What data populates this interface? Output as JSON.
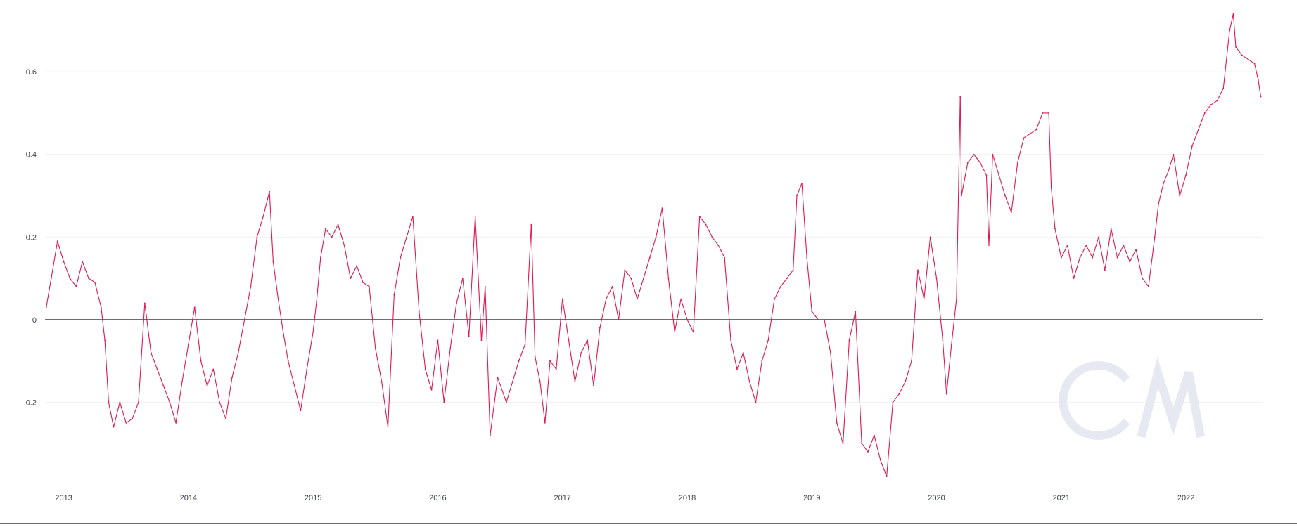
{
  "colors": {
    "series": "#e0184e",
    "grid": "#eef0f4",
    "zero_line": "#3a3d44",
    "watermark": "#e6e9f2",
    "text": "#3b3f4a"
  },
  "watermark_icon": "coinmetrics-logo",
  "chart_data": {
    "type": "line",
    "title": "",
    "xlabel": "",
    "ylabel": "",
    "grid": true,
    "legend": "none",
    "ylim": [
      -0.4,
      0.75
    ],
    "y_ticks": [
      {
        "value": -0.2,
        "label": "-0.2"
      },
      {
        "value": 0,
        "label": "0"
      },
      {
        "value": 0.2,
        "label": "0.2"
      },
      {
        "value": 0.4,
        "label": "0.4"
      },
      {
        "value": 0.6,
        "label": "0.6"
      }
    ],
    "x_range": [
      2012.85,
      2022.62
    ],
    "x_ticks": [
      {
        "value": 2013,
        "label": "2013"
      },
      {
        "value": 2014,
        "label": "2014"
      },
      {
        "value": 2015,
        "label": "2015"
      },
      {
        "value": 2016,
        "label": "2016"
      },
      {
        "value": 2017,
        "label": "2017"
      },
      {
        "value": 2018,
        "label": "2018"
      },
      {
        "value": 2019,
        "label": "2019"
      },
      {
        "value": 2020,
        "label": "2020"
      },
      {
        "value": 2021,
        "label": "2021"
      },
      {
        "value": 2022,
        "label": "2022"
      }
    ],
    "series": [
      {
        "values": [
          [
            2012.86,
            0.03
          ],
          [
            2012.9,
            0.1
          ],
          [
            2012.95,
            0.19
          ],
          [
            2013.0,
            0.14
          ],
          [
            2013.05,
            0.1
          ],
          [
            2013.1,
            0.08
          ],
          [
            2013.15,
            0.14
          ],
          [
            2013.2,
            0.1
          ],
          [
            2013.25,
            0.09
          ],
          [
            2013.3,
            0.03
          ],
          [
            2013.33,
            -0.05
          ],
          [
            2013.36,
            -0.2
          ],
          [
            2013.4,
            -0.26
          ],
          [
            2013.45,
            -0.2
          ],
          [
            2013.5,
            -0.25
          ],
          [
            2013.55,
            -0.24
          ],
          [
            2013.6,
            -0.2
          ],
          [
            2013.65,
            0.04
          ],
          [
            2013.7,
            -0.08
          ],
          [
            2013.75,
            -0.12
          ],
          [
            2013.8,
            -0.16
          ],
          [
            2013.85,
            -0.2
          ],
          [
            2013.9,
            -0.25
          ],
          [
            2013.95,
            -0.15
          ],
          [
            2014.0,
            -0.06
          ],
          [
            2014.05,
            0.03
          ],
          [
            2014.1,
            -0.1
          ],
          [
            2014.15,
            -0.16
          ],
          [
            2014.2,
            -0.12
          ],
          [
            2014.25,
            -0.2
          ],
          [
            2014.3,
            -0.24
          ],
          [
            2014.35,
            -0.14
          ],
          [
            2014.4,
            -0.08
          ],
          [
            2014.45,
            0.0
          ],
          [
            2014.5,
            0.08
          ],
          [
            2014.55,
            0.2
          ],
          [
            2014.6,
            0.25
          ],
          [
            2014.65,
            0.31
          ],
          [
            2014.68,
            0.14
          ],
          [
            2014.72,
            0.05
          ],
          [
            2014.76,
            -0.03
          ],
          [
            2014.8,
            -0.1
          ],
          [
            2014.85,
            -0.16
          ],
          [
            2014.9,
            -0.22
          ],
          [
            2014.95,
            -0.12
          ],
          [
            2015.0,
            -0.03
          ],
          [
            2015.03,
            0.05
          ],
          [
            2015.06,
            0.15
          ],
          [
            2015.1,
            0.22
          ],
          [
            2015.15,
            0.2
          ],
          [
            2015.2,
            0.23
          ],
          [
            2015.25,
            0.18
          ],
          [
            2015.3,
            0.1
          ],
          [
            2015.35,
            0.13
          ],
          [
            2015.4,
            0.09
          ],
          [
            2015.45,
            0.08
          ],
          [
            2015.5,
            -0.07
          ],
          [
            2015.55,
            -0.15
          ],
          [
            2015.6,
            -0.26
          ],
          [
            2015.65,
            0.06
          ],
          [
            2015.7,
            0.15
          ],
          [
            2015.75,
            0.2
          ],
          [
            2015.8,
            0.25
          ],
          [
            2015.85,
            0.02
          ],
          [
            2015.9,
            -0.12
          ],
          [
            2015.95,
            -0.17
          ],
          [
            2016.0,
            -0.05
          ],
          [
            2016.05,
            -0.2
          ],
          [
            2016.1,
            -0.07
          ],
          [
            2016.15,
            0.04
          ],
          [
            2016.2,
            0.1
          ],
          [
            2016.25,
            -0.04
          ],
          [
            2016.3,
            0.25
          ],
          [
            2016.35,
            -0.05
          ],
          [
            2016.38,
            0.08
          ],
          [
            2016.42,
            -0.28
          ],
          [
            2016.48,
            -0.14
          ],
          [
            2016.55,
            -0.2
          ],
          [
            2016.6,
            -0.15
          ],
          [
            2016.65,
            -0.1
          ],
          [
            2016.7,
            -0.06
          ],
          [
            2016.75,
            0.23
          ],
          [
            2016.78,
            -0.09
          ],
          [
            2016.82,
            -0.15
          ],
          [
            2016.86,
            -0.25
          ],
          [
            2016.9,
            -0.1
          ],
          [
            2016.95,
            -0.12
          ],
          [
            2017.0,
            0.05
          ],
          [
            2017.05,
            -0.05
          ],
          [
            2017.1,
            -0.15
          ],
          [
            2017.15,
            -0.08
          ],
          [
            2017.2,
            -0.05
          ],
          [
            2017.25,
            -0.16
          ],
          [
            2017.3,
            -0.02
          ],
          [
            2017.35,
            0.05
          ],
          [
            2017.4,
            0.08
          ],
          [
            2017.45,
            0.0
          ],
          [
            2017.5,
            0.12
          ],
          [
            2017.55,
            0.1
          ],
          [
            2017.6,
            0.05
          ],
          [
            2017.65,
            0.1
          ],
          [
            2017.7,
            0.15
          ],
          [
            2017.75,
            0.2
          ],
          [
            2017.8,
            0.27
          ],
          [
            2017.85,
            0.1
          ],
          [
            2017.9,
            -0.03
          ],
          [
            2017.95,
            0.05
          ],
          [
            2018.0,
            0.0
          ],
          [
            2018.05,
            -0.03
          ],
          [
            2018.1,
            0.25
          ],
          [
            2018.15,
            0.23
          ],
          [
            2018.2,
            0.2
          ],
          [
            2018.25,
            0.18
          ],
          [
            2018.3,
            0.15
          ],
          [
            2018.35,
            -0.05
          ],
          [
            2018.4,
            -0.12
          ],
          [
            2018.45,
            -0.08
          ],
          [
            2018.5,
            -0.15
          ],
          [
            2018.55,
            -0.2
          ],
          [
            2018.6,
            -0.1
          ],
          [
            2018.65,
            -0.05
          ],
          [
            2018.7,
            0.05
          ],
          [
            2018.75,
            0.08
          ],
          [
            2018.8,
            0.1
          ],
          [
            2018.85,
            0.12
          ],
          [
            2018.88,
            0.3
          ],
          [
            2018.92,
            0.33
          ],
          [
            2018.96,
            0.15
          ],
          [
            2019.0,
            0.02
          ],
          [
            2019.05,
            0.0
          ],
          [
            2019.1,
            0.0
          ],
          [
            2019.15,
            -0.08
          ],
          [
            2019.2,
            -0.25
          ],
          [
            2019.25,
            -0.3
          ],
          [
            2019.3,
            -0.05
          ],
          [
            2019.35,
            0.02
          ],
          [
            2019.4,
            -0.3
          ],
          [
            2019.45,
            -0.32
          ],
          [
            2019.5,
            -0.28
          ],
          [
            2019.55,
            -0.34
          ],
          [
            2019.6,
            -0.38
          ],
          [
            2019.65,
            -0.2
          ],
          [
            2019.7,
            -0.18
          ],
          [
            2019.75,
            -0.15
          ],
          [
            2019.8,
            -0.1
          ],
          [
            2019.85,
            0.12
          ],
          [
            2019.9,
            0.05
          ],
          [
            2019.95,
            0.2
          ],
          [
            2020.0,
            0.1
          ],
          [
            2020.05,
            -0.05
          ],
          [
            2020.08,
            -0.18
          ],
          [
            2020.12,
            -0.06
          ],
          [
            2020.16,
            0.05
          ],
          [
            2020.19,
            0.54
          ],
          [
            2020.2,
            0.3
          ],
          [
            2020.25,
            0.38
          ],
          [
            2020.3,
            0.4
          ],
          [
            2020.35,
            0.38
          ],
          [
            2020.4,
            0.35
          ],
          [
            2020.42,
            0.18
          ],
          [
            2020.45,
            0.4
          ],
          [
            2020.5,
            0.35
          ],
          [
            2020.55,
            0.3
          ],
          [
            2020.6,
            0.26
          ],
          [
            2020.65,
            0.38
          ],
          [
            2020.7,
            0.44
          ],
          [
            2020.75,
            0.45
          ],
          [
            2020.8,
            0.46
          ],
          [
            2020.85,
            0.5
          ],
          [
            2020.9,
            0.5
          ],
          [
            2020.92,
            0.32
          ],
          [
            2020.95,
            0.22
          ],
          [
            2021.0,
            0.15
          ],
          [
            2021.05,
            0.18
          ],
          [
            2021.1,
            0.1
          ],
          [
            2021.15,
            0.15
          ],
          [
            2021.2,
            0.18
          ],
          [
            2021.25,
            0.15
          ],
          [
            2021.3,
            0.2
          ],
          [
            2021.35,
            0.12
          ],
          [
            2021.4,
            0.22
          ],
          [
            2021.45,
            0.15
          ],
          [
            2021.5,
            0.18
          ],
          [
            2021.55,
            0.14
          ],
          [
            2021.6,
            0.17
          ],
          [
            2021.65,
            0.1
          ],
          [
            2021.7,
            0.08
          ],
          [
            2021.75,
            0.2
          ],
          [
            2021.78,
            0.28
          ],
          [
            2021.82,
            0.33
          ],
          [
            2021.86,
            0.36
          ],
          [
            2021.9,
            0.4
          ],
          [
            2021.95,
            0.3
          ],
          [
            2022.0,
            0.35
          ],
          [
            2022.05,
            0.42
          ],
          [
            2022.1,
            0.46
          ],
          [
            2022.15,
            0.5
          ],
          [
            2022.2,
            0.52
          ],
          [
            2022.25,
            0.53
          ],
          [
            2022.3,
            0.56
          ],
          [
            2022.35,
            0.7
          ],
          [
            2022.38,
            0.74
          ],
          [
            2022.4,
            0.66
          ],
          [
            2022.45,
            0.64
          ],
          [
            2022.5,
            0.63
          ],
          [
            2022.55,
            0.62
          ],
          [
            2022.58,
            0.58
          ],
          [
            2022.6,
            0.54
          ]
        ]
      }
    ]
  }
}
